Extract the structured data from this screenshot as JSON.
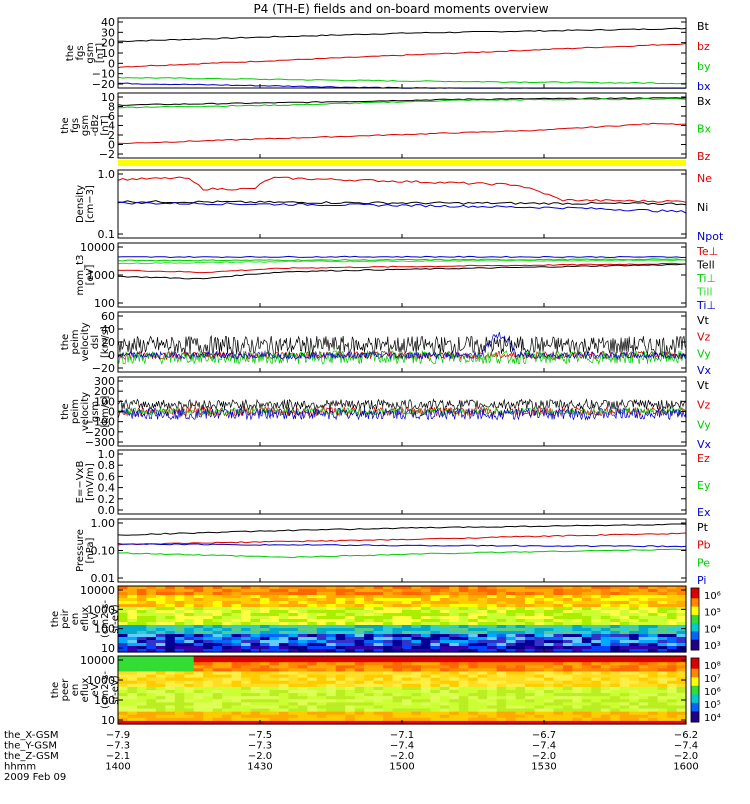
{
  "title": "P4 (TH-E) fields and on-board moments overview",
  "colors": {
    "black": "#000000",
    "red": "#dd0000",
    "green": "#00cc00",
    "lightgreen": "#33dd33",
    "blue": "#0000cc",
    "yellow": "#ffff00"
  },
  "chart_data": [
    {
      "id": "p1",
      "type": "line",
      "ylabel": [
        "the",
        "fgs",
        "gsm",
        "[nT]"
      ],
      "yticks": [
        "40",
        "30",
        "20",
        "10",
        "0",
        "−10",
        "−20"
      ],
      "ylim": [
        -20,
        40
      ],
      "scale": "linear",
      "series": [
        {
          "name": "Bt",
          "color": "black",
          "kind": "line",
          "points": [
            [
              0,
              20
            ],
            [
              0.5,
              27
            ],
            [
              1,
              31
            ]
          ]
        },
        {
          "name": "bz",
          "color": "red",
          "kind": "line",
          "points": [
            [
              0,
              -2
            ],
            [
              0.5,
              8
            ],
            [
              1,
              18
            ]
          ]
        },
        {
          "name": "by",
          "color": "green",
          "kind": "line",
          "points": [
            [
              0,
              -11
            ],
            [
              0.5,
              -14
            ],
            [
              1,
              -16
            ]
          ]
        },
        {
          "name": "bx",
          "color": "blue",
          "kind": "line",
          "points": [
            [
              0,
              -16
            ],
            [
              0.5,
              -20
            ],
            [
              1,
              -21
            ]
          ]
        }
      ]
    },
    {
      "id": "p2",
      "type": "line",
      "ylabel": [
        "the",
        "fgs",
        "gsm",
        "-dBz",
        "[nT]"
      ],
      "yticks": [
        "10",
        "8",
        "6",
        "4",
        "2",
        "0",
        "−2"
      ],
      "ylim": [
        -3,
        10.5
      ],
      "scale": "linear",
      "series": [
        {
          "name": "Bx",
          "color": "black",
          "kind": "line",
          "points": [
            [
              0,
              8
            ],
            [
              0.3,
              8.5
            ],
            [
              0.6,
              9.2
            ],
            [
              1,
              9.5
            ]
          ]
        },
        {
          "name": "Bx",
          "color": "green",
          "kind": "line",
          "points": [
            [
              0,
              7.5
            ],
            [
              0.3,
              8.0
            ],
            [
              0.6,
              9.0
            ],
            [
              1,
              9.3
            ]
          ]
        },
        {
          "name": "Bz",
          "color": "red",
          "kind": "line",
          "points": [
            [
              0,
              0
            ],
            [
              0.4,
              1.5
            ],
            [
              0.75,
              2.8
            ],
            [
              0.95,
              4.2
            ],
            [
              1,
              4
            ]
          ]
        }
      ]
    },
    {
      "id": "p3",
      "type": "line",
      "ylabel": [
        "Density",
        "[cm−3]"
      ],
      "yticks": [
        "1.0",
        "0.1"
      ],
      "ylim": [
        0.1,
        1.2
      ],
      "scale": "log",
      "series": [
        {
          "name": "Ne",
          "color": "red",
          "kind": "line",
          "points": [
            [
              0,
              0.85
            ],
            [
              0.12,
              0.9
            ],
            [
              0.15,
              0.6
            ],
            [
              0.24,
              0.6
            ],
            [
              0.27,
              0.9
            ],
            [
              0.7,
              0.7
            ],
            [
              0.78,
              0.4
            ],
            [
              1,
              0.38
            ]
          ]
        },
        {
          "name": "Ni",
          "color": "black",
          "kind": "line",
          "points": [
            [
              0,
              0.38
            ],
            [
              0.5,
              0.36
            ],
            [
              1,
              0.35
            ]
          ]
        },
        {
          "name": "Npot",
          "color": "blue",
          "kind": "line",
          "points": [
            [
              0,
              0.36
            ],
            [
              0.5,
              0.33
            ],
            [
              0.8,
              0.3
            ],
            [
              1,
              0.26
            ]
          ]
        }
      ]
    },
    {
      "id": "p4",
      "type": "line",
      "ylabel": [
        "mom_t3",
        "[eV]"
      ],
      "yticks": [
        "10000",
        "1000",
        "100"
      ],
      "ylim": [
        100,
        15000
      ],
      "scale": "log",
      "series": [
        {
          "name": "Te⊥",
          "color": "red",
          "kind": "line",
          "points": [
            [
              0,
              1800
            ],
            [
              0.15,
              1500
            ],
            [
              0.3,
              2100
            ],
            [
              0.7,
              2600
            ],
            [
              1,
              3000
            ]
          ]
        },
        {
          "name": "Tell",
          "color": "black",
          "kind": "line",
          "points": [
            [
              0,
              1100
            ],
            [
              0.15,
              900
            ],
            [
              0.3,
              1600
            ],
            [
              0.7,
              2200
            ],
            [
              1,
              2800
            ]
          ]
        },
        {
          "name": "Ti⊥",
          "color": "green",
          "kind": "line",
          "points": [
            [
              0,
              3800
            ],
            [
              0.5,
              4000
            ],
            [
              1,
              4200
            ]
          ]
        },
        {
          "name": "Till",
          "color": "lightgreen",
          "kind": "line",
          "points": [
            [
              0,
              3000
            ],
            [
              0.3,
              3500
            ],
            [
              0.6,
              3700
            ],
            [
              1,
              3900
            ]
          ]
        },
        {
          "name": "Ti⊥",
          "color": "blue",
          "kind": "line",
          "points": [
            [
              0,
              5000
            ],
            [
              0.5,
              5100
            ],
            [
              1,
              5000
            ]
          ]
        }
      ]
    },
    {
      "id": "p5",
      "type": "line",
      "ylabel": [
        "the",
        "peim",
        "velocity",
        "dsl",
        "[km/s]"
      ],
      "yticks": [
        "60",
        "40",
        "20",
        "0",
        "−20"
      ],
      "ylim": [
        -25,
        65
      ],
      "scale": "linear",
      "series": [
        {
          "name": "Vt",
          "color": "black",
          "kind": "noise",
          "center": 15,
          "amp": 14
        },
        {
          "name": "Vz",
          "color": "red",
          "kind": "noise",
          "center": 0,
          "amp": 6
        },
        {
          "name": "Vy",
          "color": "green",
          "kind": "noise",
          "center": -3,
          "amp": 10
        },
        {
          "name": "Vx",
          "color": "blue",
          "kind": "noise",
          "center": 0,
          "amp": 5
        }
      ]
    },
    {
      "id": "p6",
      "type": "line",
      "ylabel": [
        "the",
        "peim",
        "velocity",
        "gsm",
        "[km/s]"
      ],
      "yticks": [
        "300",
        "200",
        "100",
        "0",
        "−100",
        "−200",
        "−300"
      ],
      "ylim": [
        -300,
        300
      ],
      "scale": "linear",
      "series": [
        {
          "name": "Vt",
          "color": "black",
          "kind": "noise",
          "center": 60,
          "amp": 45
        },
        {
          "name": "Vz",
          "color": "red",
          "kind": "noise",
          "center": 0,
          "amp": 40
        },
        {
          "name": "Vy",
          "color": "green",
          "kind": "noise",
          "center": 0,
          "amp": 30
        },
        {
          "name": "Vx",
          "color": "blue",
          "kind": "noise",
          "center": -20,
          "amp": 50
        }
      ]
    },
    {
      "id": "p7",
      "type": "line",
      "ylabel": [
        "E=−VxB",
        "[mV/m]"
      ],
      "yticks": [
        "1.0",
        "0.8",
        "0.6",
        "0.4",
        "0.2",
        "0.0"
      ],
      "ylim": [
        0,
        1
      ],
      "scale": "linear",
      "series": [
        {
          "name": "Ez",
          "color": "red",
          "kind": "none"
        },
        {
          "name": "Ey",
          "color": "green",
          "kind": "none"
        },
        {
          "name": "Ex",
          "color": "blue",
          "kind": "none"
        }
      ]
    },
    {
      "id": "p8",
      "type": "line",
      "ylabel": [
        "Pressure",
        "[nPa]"
      ],
      "yticks": [
        "1.00",
        "0.10",
        "0.01"
      ],
      "ylim": [
        0.01,
        1.2
      ],
      "scale": "log",
      "series": [
        {
          "name": "Pt",
          "color": "black",
          "kind": "line",
          "points": [
            [
              0,
              0.35
            ],
            [
              0.5,
              0.6
            ],
            [
              1,
              0.8
            ]
          ]
        },
        {
          "name": "Pb",
          "color": "red",
          "kind": "line",
          "points": [
            [
              0,
              0.17
            ],
            [
              0.5,
              0.25
            ],
            [
              1,
              0.4
            ]
          ]
        },
        {
          "name": "Pe",
          "color": "green",
          "kind": "line",
          "points": [
            [
              0,
              0.09
            ],
            [
              0.3,
              0.065
            ],
            [
              0.6,
              0.09
            ],
            [
              1,
              0.12
            ]
          ]
        },
        {
          "name": "Pi",
          "color": "blue",
          "kind": "line",
          "points": [
            [
              0,
              0.18
            ],
            [
              0.5,
              0.16
            ],
            [
              1,
              0.15
            ]
          ]
        }
      ]
    },
    {
      "id": "p9",
      "type": "heatmap",
      "ylabel": [
        "the",
        "peir",
        "en",
        "eflux",
        "eV",
        "(cm2-s-",
        "sr-eV)"
      ],
      "yticks": [
        "10000",
        "1000",
        "100",
        "10"
      ],
      "colorbar": [
        "10⁶",
        "10⁵",
        "10⁴",
        "10³"
      ]
    },
    {
      "id": "p10",
      "type": "heatmap",
      "ylabel": [
        "the",
        "peer",
        "en",
        "eflux",
        "eV",
        "(cm2-s-",
        "sr-eV)"
      ],
      "yticks": [
        "10000",
        "1000",
        "100",
        "10"
      ],
      "colorbar": [
        "10⁸",
        "10⁷",
        "10⁶",
        "10⁵",
        "10⁴"
      ]
    }
  ],
  "x_axis": {
    "rows": [
      {
        "label": "the_X-GSM",
        "values": [
          "−7.9",
          "−7.5",
          "−7.1",
          "−6.7",
          "−6.2"
        ]
      },
      {
        "label": "the_Y-GSM",
        "values": [
          "−7.3",
          "−7.3",
          "−7.4",
          "−7.4",
          "−7.4"
        ]
      },
      {
        "label": "the_Z-GSM",
        "values": [
          "−2.1",
          "−2.0",
          "−2.0",
          "−2.0",
          "−2.0"
        ]
      },
      {
        "label": "hhmm",
        "values": [
          "1400",
          "1430",
          "1500",
          "1530",
          "1600"
        ]
      }
    ],
    "date": "2009 Feb 09"
  }
}
